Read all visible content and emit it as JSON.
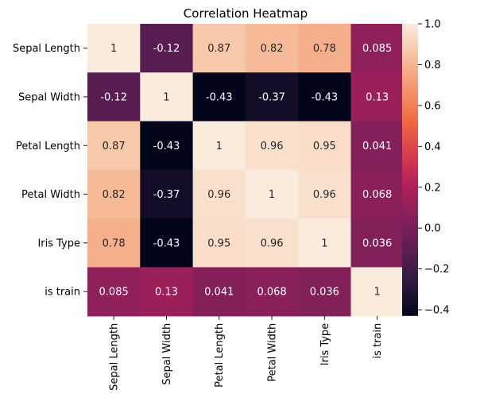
{
  "chart_data": {
    "type": "heatmap",
    "title": "Correlation Heatmap",
    "x_labels": [
      "Sepal Length",
      "Sepal Width",
      "Petal Length",
      "Petal Width",
      "Iris Type",
      "is train"
    ],
    "y_labels": [
      "Sepal Length",
      "Sepal Width",
      "Petal Length",
      "Petal Width",
      "Iris Type",
      "is train"
    ],
    "values": [
      [
        1,
        -0.12,
        0.87,
        0.82,
        0.78,
        0.085
      ],
      [
        -0.12,
        1,
        -0.43,
        -0.37,
        -0.43,
        0.13
      ],
      [
        0.87,
        -0.43,
        1,
        0.96,
        0.95,
        0.041
      ],
      [
        0.82,
        -0.37,
        0.96,
        1,
        0.96,
        0.068
      ],
      [
        0.78,
        -0.43,
        0.95,
        0.96,
        1,
        0.036
      ],
      [
        0.085,
        0.13,
        0.041,
        0.068,
        0.036,
        1
      ]
    ],
    "cell_labels": [
      [
        "1",
        "-0.12",
        "0.87",
        "0.82",
        "0.78",
        "0.085"
      ],
      [
        "-0.12",
        "1",
        "-0.43",
        "-0.37",
        "-0.43",
        "0.13"
      ],
      [
        "0.87",
        "-0.43",
        "1",
        "0.96",
        "0.95",
        "0.041"
      ],
      [
        "0.82",
        "-0.37",
        "0.96",
        "1",
        "0.96",
        "0.068"
      ],
      [
        "0.78",
        "-0.43",
        "0.95",
        "0.96",
        "1",
        "0.036"
      ],
      [
        "0.085",
        "0.13",
        "0.041",
        "0.068",
        "0.036",
        "1"
      ]
    ],
    "colorbar": {
      "vmin": -0.43,
      "vmax": 1.0,
      "ticks": [
        -0.4,
        -0.2,
        0.0,
        0.2,
        0.4,
        0.6,
        0.8,
        1.0
      ],
      "tick_labels": [
        "−0.4",
        "−0.2",
        "0.0",
        "0.2",
        "0.4",
        "0.6",
        "0.8",
        "1.0"
      ]
    },
    "colormap": "rocket",
    "colormap_stops": [
      "#03051a",
      "#2d1a3d",
      "#5a1e52",
      "#84205a",
      "#b0205a",
      "#d93d4f",
      "#f06a3f",
      "#f5956e",
      "#f7c09f",
      "#faebdd"
    ]
  }
}
